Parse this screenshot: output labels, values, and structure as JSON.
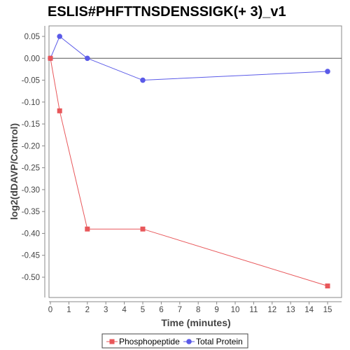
{
  "chart_data": {
    "type": "line",
    "title": "ESLIS#PHFTTNSDENSSIGK(+ 3)_v1",
    "xlabel": "Time (minutes)",
    "ylabel": "log2(dDAVP/Control)",
    "xlim": [
      0,
      16
    ],
    "ylim": [
      -0.55,
      0.075
    ],
    "xticks": [
      0,
      1,
      2,
      3,
      4,
      5,
      6,
      7,
      8,
      9,
      10,
      11,
      12,
      13,
      14,
      15
    ],
    "yticks": [
      0.05,
      0.0,
      -0.05,
      -0.1,
      -0.15,
      -0.2,
      -0.25,
      -0.3,
      -0.35,
      -0.4,
      -0.45,
      -0.5
    ],
    "ytick_labels": [
      "0.05",
      "0.00",
      "-0.05",
      "-0.10",
      "-0.15",
      "-0.20",
      "-0.25",
      "-0.30",
      "-0.35",
      "-0.40",
      "-0.45",
      "-0.50"
    ],
    "zero_line": true,
    "grid": false,
    "legend_position": "bottom",
    "series": [
      {
        "name": "Phosphopeptide",
        "color": "#e8575a",
        "marker": "square",
        "x": [
          0,
          0.5,
          2,
          5,
          15
        ],
        "y": [
          0.0,
          -0.12,
          -0.39,
          -0.39,
          -0.52
        ]
      },
      {
        "name": "Total Protein",
        "color": "#5a5ae8",
        "marker": "circle",
        "x": [
          0,
          0.5,
          2,
          5,
          15
        ],
        "y": [
          0.0,
          0.05,
          0.0,
          -0.05,
          -0.03
        ]
      }
    ]
  }
}
